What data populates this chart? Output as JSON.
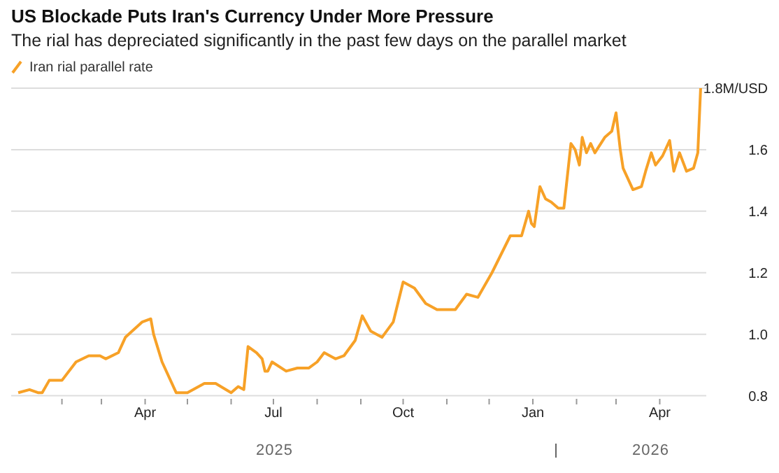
{
  "chart_data": {
    "type": "line",
    "title": "US Blockade Puts Iran's Currency Under More Pressure",
    "subtitle": "The rial has depreciated significantly in the past few days on the parallel market",
    "annotations": [
      "2025",
      "2026"
    ],
    "x": [
      "2025-01-01",
      "2025-01-09",
      "2025-01-15",
      "2025-01-18",
      "2025-01-23",
      "2025-02-01",
      "2025-02-11",
      "2025-02-20",
      "2025-02-28",
      "2025-03-04",
      "2025-03-13",
      "2025-03-18",
      "2025-03-30",
      "2025-04-05",
      "2025-04-07",
      "2025-04-13",
      "2025-04-23",
      "2025-05-01",
      "2025-05-13",
      "2025-05-21",
      "2025-06-01",
      "2025-06-06",
      "2025-06-10",
      "2025-06-13",
      "2025-06-19",
      "2025-06-23",
      "2025-06-25",
      "2025-06-27",
      "2025-06-30",
      "2025-07-10",
      "2025-07-18",
      "2025-07-26",
      "2025-08-01",
      "2025-08-06",
      "2025-08-14",
      "2025-08-20",
      "2025-08-28",
      "2025-09-02",
      "2025-09-08",
      "2025-09-16",
      "2025-09-24",
      "2025-10-01",
      "2025-10-09",
      "2025-10-17",
      "2025-10-25",
      "2025-11-07",
      "2025-11-15",
      "2025-11-23",
      "2025-12-03",
      "2025-12-16",
      "2025-12-24",
      "2025-12-29",
      "2025-12-31",
      "2026-01-02",
      "2026-01-06",
      "2026-01-10",
      "2026-01-14",
      "2026-01-19",
      "2026-01-23",
      "2026-01-28",
      "2026-01-31",
      "2026-02-03",
      "2026-02-05",
      "2026-02-08",
      "2026-02-11",
      "2026-02-14",
      "2026-02-21",
      "2026-02-26",
      "2026-03-01",
      "2026-03-04",
      "2026-03-06",
      "2026-03-13",
      "2026-03-19",
      "2026-03-22",
      "2026-03-26",
      "2026-03-29",
      "2026-04-03",
      "2026-04-08",
      "2026-04-11",
      "2026-04-15",
      "2026-04-20",
      "2026-04-25",
      "2026-04-28",
      "2026-04-30"
    ],
    "series": [
      {
        "name": "Iran rial parallel rate",
        "color": "#f7a127",
        "values": [
          0.81,
          0.82,
          0.81,
          0.81,
          0.85,
          0.85,
          0.91,
          0.93,
          0.93,
          0.92,
          0.94,
          0.99,
          1.04,
          1.05,
          1.0,
          0.91,
          0.81,
          0.81,
          0.84,
          0.84,
          0.81,
          0.83,
          0.82,
          0.96,
          0.94,
          0.92,
          0.88,
          0.88,
          0.91,
          0.88,
          0.89,
          0.89,
          0.91,
          0.94,
          0.92,
          0.93,
          0.98,
          1.06,
          1.01,
          0.99,
          1.04,
          1.17,
          1.15,
          1.1,
          1.08,
          1.08,
          1.13,
          1.12,
          1.2,
          1.32,
          1.32,
          1.4,
          1.36,
          1.35,
          1.48,
          1.44,
          1.43,
          1.41,
          1.41,
          1.62,
          1.6,
          1.55,
          1.64,
          1.59,
          1.62,
          1.59,
          1.64,
          1.66,
          1.72,
          1.6,
          1.54,
          1.47,
          1.48,
          1.53,
          1.59,
          1.55,
          1.58,
          1.63,
          1.53,
          1.59,
          1.53,
          1.54,
          1.59,
          1.8
        ]
      }
    ],
    "xlim": [
      "2024-12-27",
      "2026-05-04"
    ],
    "xticks": [
      {
        "value": "2025-02-01",
        "label": null
      },
      {
        "value": "2025-03-01",
        "label": null
      },
      {
        "value": "2025-04-01",
        "label": "Apr"
      },
      {
        "value": "2025-05-01",
        "label": null
      },
      {
        "value": "2025-06-01",
        "label": null
      },
      {
        "value": "2025-07-01",
        "label": "Jul"
      },
      {
        "value": "2025-08-01",
        "label": null
      },
      {
        "value": "2025-09-01",
        "label": null
      },
      {
        "value": "2025-10-01",
        "label": "Oct"
      },
      {
        "value": "2025-11-01",
        "label": null
      },
      {
        "value": "2025-12-01",
        "label": null
      },
      {
        "value": "2026-01-01",
        "label": "Jan"
      },
      {
        "value": "2026-02-01",
        "label": null
      },
      {
        "value": "2026-03-01",
        "label": null
      },
      {
        "value": "2026-04-01",
        "label": "Apr"
      }
    ],
    "ylim": [
      0.79,
      1.8
    ],
    "yticks": [
      0.8,
      {
        "value": 1.0,
        "label": "1.0"
      },
      1.2,
      1.4,
      1.6,
      {
        "value": 1.8,
        "label": "1.8M/USD"
      }
    ],
    "grid": "y",
    "legend": "top left",
    "line_style": "solid",
    "marker": "none"
  }
}
